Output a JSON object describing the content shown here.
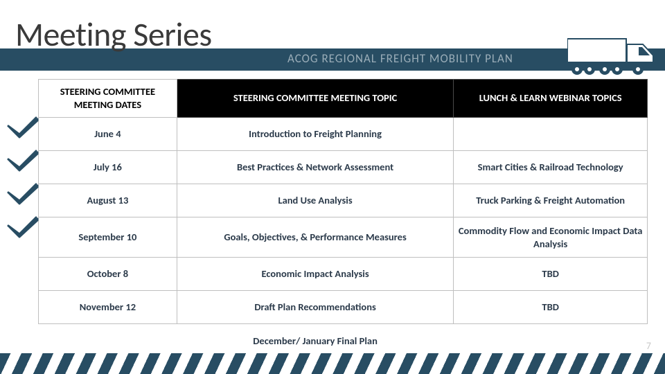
{
  "page": {
    "title": "Meeting Series",
    "subtitle": "ACOG REGIONAL FREIGHT MOBILITY PLAN",
    "page_number": "7"
  },
  "colors": {
    "header_band": "#284d63",
    "title_text": "#3a3a3a",
    "subtitle_text": "#9aadb8",
    "th_dark_bg": "#000000",
    "th_dark_text": "#ffffff",
    "th_light_bg": "#ffffff",
    "th_light_text": "#000000",
    "cell_text": "#2b3a4a",
    "border": "#bfbfbf",
    "check": "#284d63",
    "stripe": "#284d63",
    "truck_body": "#ffffff",
    "truck_outline": "#284d63",
    "wheel": "#284d63"
  },
  "fonts": {
    "title_size": 48,
    "subtitle_size": 17,
    "th_size": 14.5,
    "td_size": 14.5
  },
  "table": {
    "headers": {
      "dates": "STEERING COMMITTEE MEETING DATES",
      "topic": "STEERING COMMITTEE MEETING TOPIC",
      "webinar": "LUNCH & LEARN WEBINAR TOPICS"
    },
    "rows": [
      {
        "date": "June 4",
        "topic": "Introduction to Freight Planning",
        "webinar": "",
        "checked": true
      },
      {
        "date": "July 16",
        "topic": "Best Practices & Network Assessment",
        "webinar": "Smart Cities & Railroad Technology",
        "checked": true
      },
      {
        "date": "August 13",
        "topic": "Land Use Analysis",
        "webinar": "Truck Parking & Freight Automation",
        "checked": true
      },
      {
        "date": "September 10",
        "topic": "Goals, Objectives, & Performance Measures",
        "webinar": "Commodity Flow and Economic Impact Data Analysis",
        "checked": true
      },
      {
        "date": "October 8",
        "topic": "Economic Impact Analysis",
        "webinar": "TBD",
        "checked": false
      },
      {
        "date": "November 12",
        "topic": "Draft Plan Recommendations",
        "webinar": "TBD",
        "checked": false
      },
      {
        "date": "",
        "topic": "December/ January Final Plan",
        "webinar": "",
        "checked": false,
        "last": true
      }
    ]
  }
}
